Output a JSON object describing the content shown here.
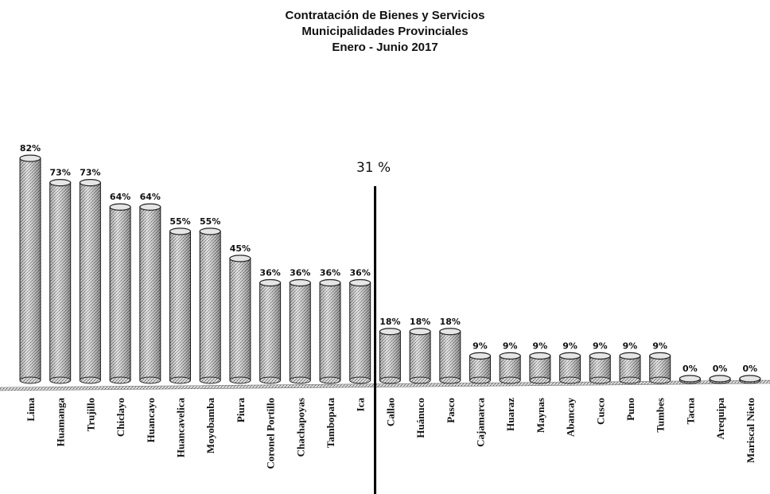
{
  "chart_data": {
    "type": "bar",
    "title": "Contratación de Bienes y Servicios",
    "subtitle": "Municipalidades Provinciales",
    "period": "Enero - Junio 2017",
    "xlabel": "",
    "ylabel": "",
    "ylim": [
      0,
      85
    ],
    "grid": false,
    "legend": "none",
    "bar_style": "3d-cylinder-stippled",
    "bar_color": "#bdbdbd",
    "categories": [
      "Lima",
      "Huamanga",
      "Trujillo",
      "Chiclayo",
      "Huancayo",
      "Huancavelica",
      "Moyobamba",
      "Piura",
      "Coronel Portillo",
      "Chachapoyas",
      "Tambopata",
      "Ica",
      "Callao",
      "Huánuco",
      "Pasco",
      "Cajamarca",
      "Huaraz",
      "Maynas",
      "Abancay",
      "Cusco",
      "Puno",
      "Tumbes",
      "Tacna",
      "Arequipa",
      "Mariscal Nieto"
    ],
    "values": [
      82,
      73,
      73,
      64,
      64,
      55,
      55,
      45,
      36,
      36,
      36,
      36,
      18,
      18,
      18,
      9,
      9,
      9,
      9,
      9,
      9,
      9,
      0,
      0,
      0
    ],
    "value_labels": [
      "82%",
      "73%",
      "73%",
      "64%",
      "64%",
      "55%",
      "55%",
      "45%",
      "36%",
      "36%",
      "36%",
      "36%",
      "18%",
      "18%",
      "18%",
      "9%",
      "9%",
      "9%",
      "9%",
      "9%",
      "9%",
      "9%",
      "0%",
      "0%",
      "0%"
    ],
    "reference_line": {
      "after_category": "Ica",
      "label": "31 %"
    }
  }
}
